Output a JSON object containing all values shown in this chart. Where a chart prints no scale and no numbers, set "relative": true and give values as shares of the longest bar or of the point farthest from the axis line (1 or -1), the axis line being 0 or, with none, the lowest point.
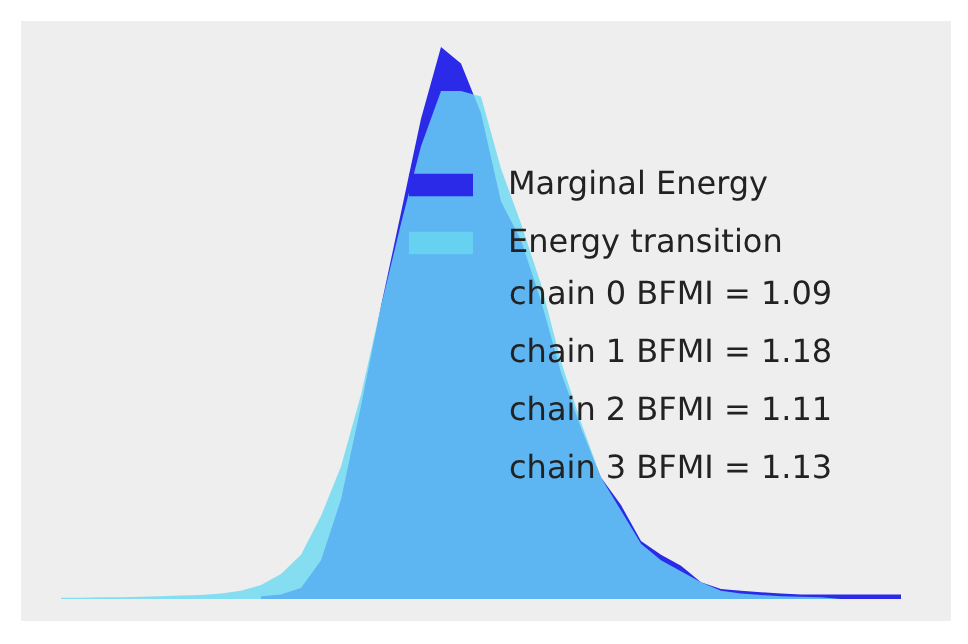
{
  "chart_data": {
    "type": "area",
    "relative": true,
    "categories": [
      null,
      null,
      null,
      null,
      null,
      null,
      null,
      null,
      null,
      null,
      null,
      null,
      null,
      null,
      null,
      null,
      null,
      null,
      null,
      null,
      null,
      null,
      null,
      null,
      null,
      null,
      null,
      null,
      null,
      null,
      null,
      null,
      null,
      null,
      null,
      null,
      null,
      null,
      null,
      null,
      null,
      null,
      null,
      null
    ],
    "series": [
      {
        "name": "Marginal Energy",
        "color": "#2a2ae8",
        "values": [
          null,
          null,
          null,
          null,
          null,
          null,
          null,
          null,
          null,
          null,
          0.005,
          0.008,
          0.02,
          0.07,
          0.18,
          0.35,
          0.53,
          0.7,
          0.87,
          1.0,
          0.97,
          0.88,
          0.72,
          0.65,
          0.54,
          0.41,
          0.31,
          0.22,
          0.17,
          0.105,
          0.08,
          0.06,
          0.03,
          0.018,
          0.015,
          0.012,
          0.01,
          0.008,
          0.008,
          0.008,
          0.008,
          0.008,
          0.008,
          null
        ]
      },
      {
        "name": "Energy transition",
        "color": "#6ad8f2",
        "values": [
          0.002,
          0.002,
          0.003,
          0.003,
          0.004,
          0.005,
          0.006,
          0.007,
          0.01,
          0.015,
          0.025,
          0.045,
          0.08,
          0.15,
          0.24,
          0.37,
          0.53,
          0.68,
          0.82,
          0.92,
          0.92,
          0.91,
          0.78,
          0.68,
          0.57,
          0.43,
          0.32,
          0.22,
          0.16,
          0.1,
          0.07,
          0.05,
          0.03,
          0.015,
          0.01,
          0.007,
          0.005,
          0.004,
          0.003,
          0.0,
          null,
          null,
          null,
          null
        ]
      }
    ],
    "legend": "right",
    "grid": false,
    "annotations": [
      "chain  0 BFMI = 1.09",
      "chain  1 BFMI = 1.18",
      "chain  2 BFMI = 1.11",
      "chain  3 BFMI = 1.13"
    ]
  }
}
